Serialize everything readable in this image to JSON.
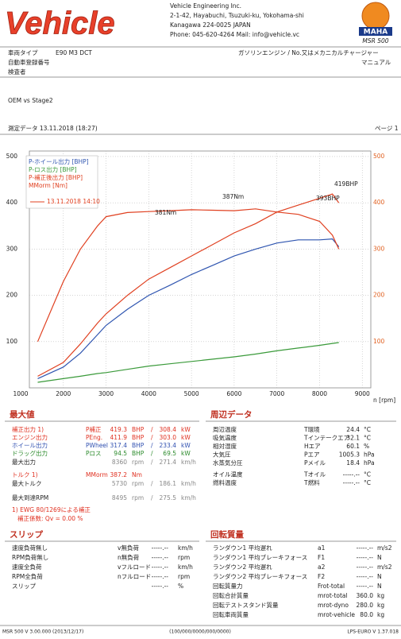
{
  "header": {
    "logo": "Vehicle",
    "company": "Vehicle Engineering Inc.",
    "address1": "2-1-42, Hayabuchi, Tsuzuki-ku, Yokohama-shi",
    "address2": "Kanagawa 224-0025 JAPAN",
    "contact": "Phone: 045-620-4264  Mail: info@vehicle.vc",
    "brand": "MAHA",
    "model": "MSR 500"
  },
  "info": {
    "rows": [
      [
        "車両タイプ",
        "E90 M3 DCT"
      ],
      [
        "自動車登録番号"
      ],
      [
        "検査者"
      ]
    ],
    "engine": "ガソリンエンジン / No.又はメカニカルチャージャー",
    "transmission": "マニュアル",
    "comment": "OEM vs Stage2",
    "measurement": "測定データ 13.11.2018 (18:27)",
    "page": "ページ 1"
  },
  "chart_data": {
    "type": "line",
    "x": [
      1400,
      2000,
      2400,
      2800,
      3000,
      3500,
      4000,
      4500,
      5000,
      5500,
      6000,
      6500,
      7000,
      7500,
      8000,
      8300,
      8450
    ],
    "xlim": [
      1000,
      9200
    ],
    "xticks": [
      1000,
      2000,
      3000,
      4000,
      5000,
      6000,
      7000,
      8000,
      9000
    ],
    "x_label": "n [rpm]",
    "ylim": [
      0,
      512
    ],
    "yticks": [
      100,
      200,
      300,
      400,
      500
    ],
    "y2lim": [
      0,
      512
    ],
    "y2ticks": [
      100,
      200,
      300,
      400,
      500
    ],
    "grid": true,
    "series": [
      {
        "name": "P-ホイール出力 [BHP]",
        "color": "#2f55b0",
        "values": [
          20,
          45,
          75,
          115,
          135,
          170,
          200,
          222,
          245,
          265,
          285,
          300,
          313,
          320,
          320,
          322,
          305
        ]
      },
      {
        "name": "P-ロス出力 [BHP]",
        "color": "#3a9a3a",
        "values": [
          12,
          20,
          25,
          31,
          33,
          40,
          47,
          52,
          57,
          62,
          67,
          73,
          80,
          86,
          92,
          96,
          98
        ]
      },
      {
        "name": "P-補正後出力 [BHP]",
        "color": "#e04020",
        "values": [
          25,
          55,
          95,
          140,
          160,
          200,
          235,
          260,
          285,
          310,
          335,
          355,
          380,
          395,
          410,
          419,
          400
        ]
      },
      {
        "name": "MMorm [Nm]",
        "color": "#e04020",
        "axis": "y2",
        "values": [
          100,
          230,
          300,
          350,
          370,
          379,
          381,
          383,
          385,
          384,
          383,
          387,
          380,
          375,
          360,
          330,
          300
        ]
      }
    ],
    "run_label": "13.11.2018 14:10",
    "annotations": [
      "381Nm",
      "387Nm",
      "393BHP",
      "419BHP"
    ]
  },
  "max_values": {
    "title": "最大値",
    "separator": "/",
    "rows": [
      {
        "label": "補正出力 1)",
        "symbol": "P補正",
        "v1": "419.3",
        "u1": "BHP",
        "v2": "308.4",
        "u2": "kW",
        "color": "#e03020"
      },
      {
        "label": "エンジン出力",
        "symbol": "PEng.",
        "v1": "411.9",
        "u1": "BHP",
        "v2": "303.0",
        "u2": "kW",
        "color": "#e03020"
      },
      {
        "label": "ホイール出力",
        "symbol": "PWheel",
        "v1": "317.4",
        "u1": "BHP",
        "v2": "233.4",
        "u2": "kW",
        "color": "#3050b0"
      },
      {
        "label": "ドラッグ出力",
        "symbol": "Pロス",
        "v1": "94.5",
        "u1": "BHP",
        "v2": "69.5",
        "u2": "kW",
        "color": "#2a8a2a"
      },
      {
        "label": "最大出力",
        "v1": "8360",
        "u1": "rpm",
        "v2": "271.4",
        "u2": "km/h",
        "color": "#888888"
      },
      {
        "label": "トルク 1)",
        "symbol": "MMorm",
        "v1": "387.2",
        "u1": "Nm",
        "color": "#e03020"
      },
      {
        "label": "最大トルク",
        "v1": "5730",
        "u1": "rpm",
        "v2": "186.1",
        "u2": "km/h",
        "color": "#888888"
      },
      {
        "label": "最大到達RPM",
        "v1": "8495",
        "u1": "rpm",
        "v2": "275.5",
        "u2": "km/h",
        "color": "#888888"
      }
    ],
    "note": "1) EWG 80/1269による補正",
    "factor": "補正係数: Qv = 0.00 %"
  },
  "environment": {
    "title": "周辺データ",
    "rows": [
      [
        "周辺温度",
        "T環境",
        "24.4",
        "°C"
      ],
      [
        "吸気温度",
        "Tインテークエア",
        "32.1",
        "°C"
      ],
      [
        "相対湿度",
        "Hエア",
        "60.1",
        "%"
      ],
      [
        "大気圧",
        "Pエア",
        "1005.3",
        "hPa"
      ],
      [
        "水蒸気分圧",
        "Pメイル",
        "18.4",
        "hPa"
      ],
      [
        "オイル温度",
        "Tオイル",
        "-----.--",
        "°C"
      ],
      [
        "燃料温度",
        "T燃料",
        "-----.--",
        "°C"
      ]
    ]
  },
  "slip": {
    "title": "スリップ",
    "rows": [
      [
        "速度負荷無し",
        "v無負荷",
        "-----.--",
        "km/h"
      ],
      [
        "RPM負荷無し",
        "n無負荷",
        "-----.--",
        "rpm"
      ],
      [
        "速度全負荷",
        "vフルロード",
        "-----.--",
        "km/h"
      ],
      [
        "RPM全負荷",
        "nフルロード",
        "-----.--",
        "rpm"
      ],
      [
        "スリップ",
        "",
        "-----.--",
        "%"
      ]
    ]
  },
  "rotation": {
    "title": "回転質量",
    "rows": [
      [
        "ランダウン1 平均遅れ",
        "a1",
        "-----.--",
        "m/s2"
      ],
      [
        "ランダウン1 平均ブレーキフォース",
        "F1",
        "-----.--",
        "N"
      ],
      [
        "ランダウン2 平均遅れ",
        "a2",
        "-----.--",
        "m/s2"
      ],
      [
        "ランダウン2 平均ブレーキフォース",
        "F2",
        "-----.--",
        "N"
      ],
      [
        "回転質量力",
        "Frot-total",
        "-----.--",
        "N"
      ],
      [
        "回転合計質量",
        "mrot-total",
        "360.0",
        "kg"
      ],
      [
        "回転テストスタンド質量",
        "mrot-dyno",
        "280.0",
        "kg"
      ],
      [
        "回転車両質量",
        "mrot-vehicle",
        "80.0",
        "kg"
      ]
    ]
  },
  "footer": {
    "left": "MSR 500 V 3.00.000 (2013/12/17)",
    "center": "(100/000/0000/000/0000)",
    "right": "LPS-EURO V 1.37.018"
  }
}
